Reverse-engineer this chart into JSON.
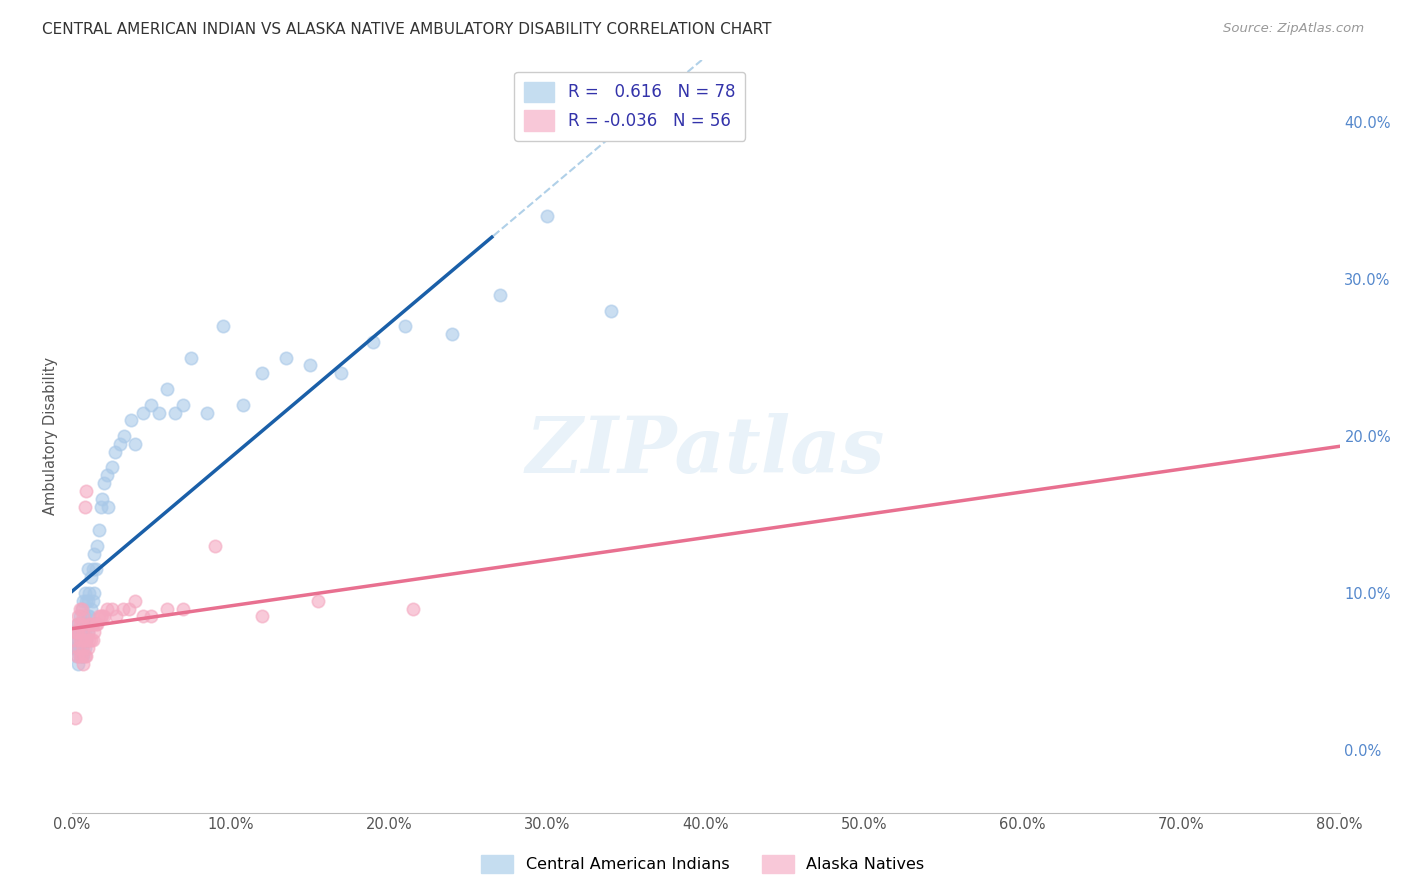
{
  "title": "CENTRAL AMERICAN INDIAN VS ALASKA NATIVE AMBULATORY DISABILITY CORRELATION CHART",
  "source": "Source: ZipAtlas.com",
  "ylabel": "Ambulatory Disability",
  "xlim": [
    0.0,
    0.8
  ],
  "ylim": [
    -0.04,
    0.44
  ],
  "blue_r": 0.616,
  "blue_n": 78,
  "pink_r": -0.036,
  "pink_n": 56,
  "watermark": "ZIPatlas",
  "blue_color": "#a8c8e8",
  "pink_color": "#f4a8c0",
  "blue_line_color": "#1a5fa8",
  "pink_line_color": "#e87090",
  "dash_line_color": "#b0d0e8",
  "blue_scatter_x": [
    0.001,
    0.002,
    0.002,
    0.003,
    0.003,
    0.003,
    0.004,
    0.004,
    0.004,
    0.004,
    0.005,
    0.005,
    0.005,
    0.005,
    0.005,
    0.006,
    0.006,
    0.006,
    0.006,
    0.006,
    0.007,
    0.007,
    0.007,
    0.007,
    0.007,
    0.008,
    0.008,
    0.008,
    0.008,
    0.009,
    0.009,
    0.009,
    0.01,
    0.01,
    0.01,
    0.01,
    0.011,
    0.011,
    0.012,
    0.012,
    0.013,
    0.013,
    0.014,
    0.014,
    0.015,
    0.016,
    0.017,
    0.018,
    0.019,
    0.02,
    0.022,
    0.023,
    0.025,
    0.027,
    0.03,
    0.033,
    0.037,
    0.04,
    0.045,
    0.05,
    0.055,
    0.06,
    0.065,
    0.07,
    0.075,
    0.085,
    0.095,
    0.108,
    0.12,
    0.135,
    0.15,
    0.17,
    0.19,
    0.21,
    0.24,
    0.27,
    0.3,
    0.34
  ],
  "blue_scatter_y": [
    0.065,
    0.07,
    0.075,
    0.06,
    0.065,
    0.075,
    0.055,
    0.065,
    0.07,
    0.08,
    0.06,
    0.065,
    0.07,
    0.075,
    0.085,
    0.06,
    0.065,
    0.07,
    0.075,
    0.09,
    0.06,
    0.07,
    0.075,
    0.08,
    0.095,
    0.065,
    0.075,
    0.085,
    0.1,
    0.07,
    0.08,
    0.095,
    0.075,
    0.085,
    0.095,
    0.115,
    0.085,
    0.1,
    0.09,
    0.11,
    0.095,
    0.115,
    0.1,
    0.125,
    0.115,
    0.13,
    0.14,
    0.155,
    0.16,
    0.17,
    0.175,
    0.155,
    0.18,
    0.19,
    0.195,
    0.2,
    0.21,
    0.195,
    0.215,
    0.22,
    0.215,
    0.23,
    0.215,
    0.22,
    0.25,
    0.215,
    0.27,
    0.22,
    0.24,
    0.25,
    0.245,
    0.24,
    0.26,
    0.27,
    0.265,
    0.29,
    0.34,
    0.28
  ],
  "pink_scatter_x": [
    0.001,
    0.002,
    0.002,
    0.003,
    0.003,
    0.003,
    0.004,
    0.004,
    0.004,
    0.005,
    0.005,
    0.005,
    0.005,
    0.006,
    0.006,
    0.006,
    0.006,
    0.007,
    0.007,
    0.007,
    0.007,
    0.008,
    0.008,
    0.008,
    0.009,
    0.009,
    0.009,
    0.01,
    0.01,
    0.011,
    0.011,
    0.012,
    0.012,
    0.013,
    0.013,
    0.014,
    0.015,
    0.016,
    0.017,
    0.018,
    0.019,
    0.02,
    0.022,
    0.025,
    0.028,
    0.032,
    0.036,
    0.04,
    0.045,
    0.05,
    0.06,
    0.07,
    0.09,
    0.12,
    0.155,
    0.215
  ],
  "pink_scatter_y": [
    0.075,
    0.02,
    0.07,
    0.06,
    0.075,
    0.08,
    0.065,
    0.075,
    0.085,
    0.06,
    0.07,
    0.08,
    0.09,
    0.06,
    0.07,
    0.08,
    0.09,
    0.055,
    0.065,
    0.075,
    0.085,
    0.06,
    0.07,
    0.155,
    0.06,
    0.07,
    0.165,
    0.065,
    0.075,
    0.07,
    0.08,
    0.07,
    0.08,
    0.07,
    0.08,
    0.075,
    0.08,
    0.08,
    0.085,
    0.085,
    0.085,
    0.085,
    0.09,
    0.09,
    0.085,
    0.09,
    0.09,
    0.095,
    0.085,
    0.085,
    0.09,
    0.09,
    0.13,
    0.085,
    0.095,
    0.09
  ],
  "ytick_vals": [
    0.0,
    0.1,
    0.2,
    0.3,
    0.4
  ],
  "ytick_labels": [
    "0.0%",
    "10.0%",
    "20.0%",
    "30.0%",
    "40.0%"
  ],
  "xtick_vals": [
    0.0,
    0.1,
    0.2,
    0.3,
    0.4,
    0.5,
    0.6,
    0.7,
    0.8
  ],
  "xtick_labels": [
    "0.0%",
    "10.0%",
    "20.0%",
    "30.0%",
    "40.0%",
    "50.0%",
    "60.0%",
    "70.0%",
    "80.0%"
  ]
}
